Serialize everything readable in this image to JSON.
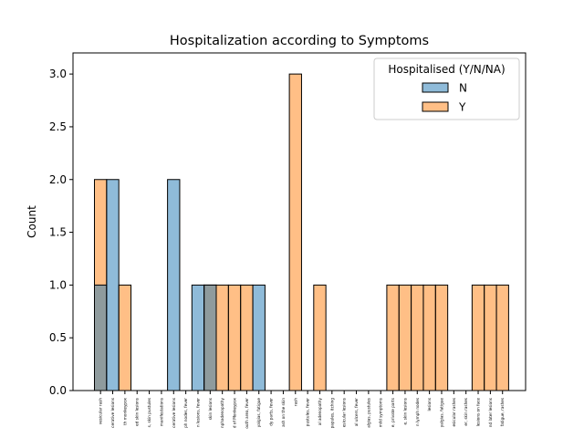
{
  "chart_data": {
    "type": "bar",
    "title": "Hospitalization according to Symptoms",
    "xlabel": "",
    "ylabel": "Count",
    "ylim": [
      0,
      3.2
    ],
    "yticks": [
      "0.0",
      "0.5",
      "1.0",
      "1.5",
      "2.0",
      "2.5",
      "3.0"
    ],
    "grid": false,
    "legend": {
      "title": "Hospitalised (Y/N/NA)",
      "placement": "top-right"
    },
    "categories": [
      "vesicular rash",
      "cerative lesions",
      "th monkeypox",
      "ed skin lesions",
      "s, skin pustules",
      "manifestations",
      "cerative lesions",
      "ph nodes, fever",
      "n lesions, fever",
      "skin lesions",
      "nphadenopathy",
      "d of Monkeypox",
      "outh area, fever",
      "yalgias, fatigue",
      "dy parts, fever",
      "ash on the skin",
      "rash",
      "pustules, fever",
      "al adenopathy",
      "papules, itching",
      "esicular lesions",
      "al ulcers, fever",
      "algias, pustules",
      "mild symptoms",
      "e, private parts",
      "e, skin lesions",
      "n lymph nodes",
      "lesions",
      "yalgias, fatigue",
      "esicular rashes",
      "er, skin rashes",
      "lesions on face",
      "nd later lesions",
      "fatigue, rashes"
    ],
    "series": [
      {
        "name": "N",
        "color": "#1f77b4",
        "values": [
          1,
          2,
          0,
          0,
          0,
          0,
          2,
          0,
          1,
          1,
          0,
          0,
          0,
          1,
          0,
          0,
          0,
          0,
          0,
          0,
          0,
          0,
          0,
          0,
          0,
          0,
          0,
          0,
          0,
          0,
          0,
          0,
          0,
          0
        ]
      },
      {
        "name": "Y",
        "color": "#ff7f0e",
        "values": [
          2,
          0,
          1,
          0,
          0,
          0,
          0,
          0,
          0,
          1,
          1,
          1,
          1,
          0,
          0,
          0,
          3,
          0,
          1,
          0,
          0,
          0,
          0,
          0,
          1,
          1,
          1,
          1,
          1,
          0,
          0,
          1,
          1,
          1
        ]
      }
    ]
  }
}
